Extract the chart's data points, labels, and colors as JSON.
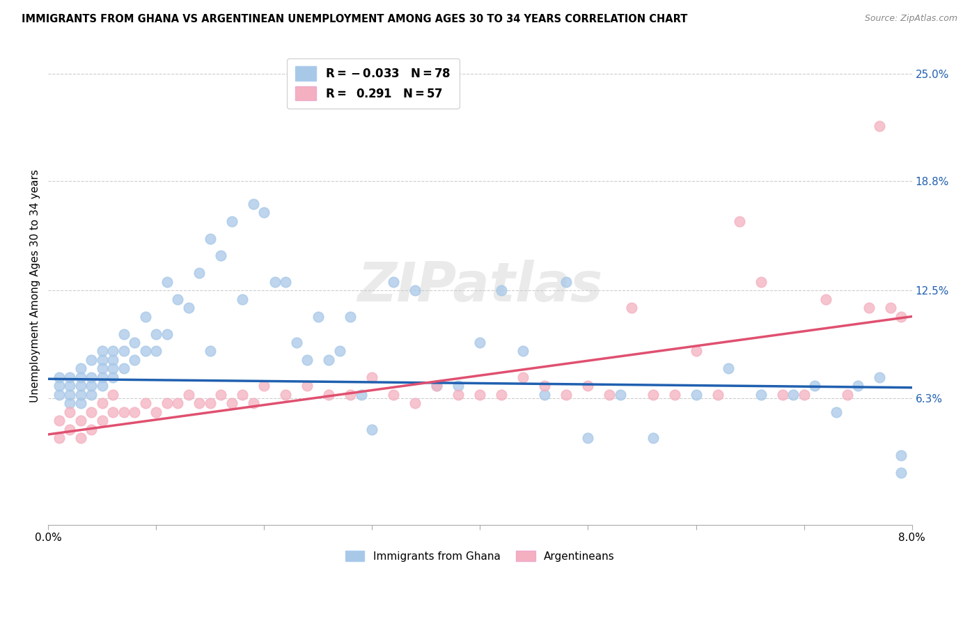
{
  "title": "IMMIGRANTS FROM GHANA VS ARGENTINEAN UNEMPLOYMENT AMONG AGES 30 TO 34 YEARS CORRELATION CHART",
  "source": "Source: ZipAtlas.com",
  "ylabel": "Unemployment Among Ages 30 to 34 years",
  "xlim": [
    0.0,
    0.08
  ],
  "ylim": [
    -0.01,
    0.265
  ],
  "xticks": [
    0.0,
    0.01,
    0.02,
    0.03,
    0.04,
    0.05,
    0.06,
    0.07,
    0.08
  ],
  "yticks_right": [
    0.063,
    0.125,
    0.188,
    0.25
  ],
  "ytick_labels_right": [
    "6.3%",
    "12.5%",
    "18.8%",
    "25.0%"
  ],
  "xtick_labels": [
    "0.0%",
    "",
    "",
    "",
    "",
    "",
    "",
    "",
    "8.0%"
  ],
  "blue_R": -0.033,
  "blue_N": 78,
  "pink_R": 0.291,
  "pink_N": 57,
  "blue_color": "#a8c8e8",
  "pink_color": "#f4b0c0",
  "blue_line_color": "#2060b0",
  "pink_line_color": "#e05070",
  "legend_label_blue": "Immigrants from Ghana",
  "legend_label_pink": "Argentineans",
  "watermark": "ZIPatlas",
  "blue_x": [
    0.001,
    0.001,
    0.001,
    0.002,
    0.002,
    0.002,
    0.002,
    0.003,
    0.003,
    0.003,
    0.003,
    0.003,
    0.004,
    0.004,
    0.004,
    0.004,
    0.005,
    0.005,
    0.005,
    0.005,
    0.005,
    0.006,
    0.006,
    0.006,
    0.006,
    0.007,
    0.007,
    0.007,
    0.008,
    0.008,
    0.009,
    0.009,
    0.01,
    0.01,
    0.011,
    0.011,
    0.012,
    0.013,
    0.014,
    0.015,
    0.015,
    0.016,
    0.017,
    0.018,
    0.019,
    0.02,
    0.021,
    0.022,
    0.023,
    0.024,
    0.025,
    0.026,
    0.027,
    0.028,
    0.029,
    0.03,
    0.032,
    0.034,
    0.036,
    0.038,
    0.04,
    0.042,
    0.044,
    0.046,
    0.048,
    0.05,
    0.053,
    0.056,
    0.06,
    0.063,
    0.066,
    0.069,
    0.071,
    0.073,
    0.075,
    0.077,
    0.079,
    0.079
  ],
  "blue_y": [
    0.065,
    0.07,
    0.075,
    0.06,
    0.065,
    0.07,
    0.075,
    0.06,
    0.065,
    0.07,
    0.075,
    0.08,
    0.065,
    0.07,
    0.075,
    0.085,
    0.07,
    0.075,
    0.08,
    0.085,
    0.09,
    0.075,
    0.08,
    0.085,
    0.09,
    0.08,
    0.09,
    0.1,
    0.085,
    0.095,
    0.09,
    0.11,
    0.09,
    0.1,
    0.1,
    0.13,
    0.12,
    0.115,
    0.135,
    0.155,
    0.09,
    0.145,
    0.165,
    0.12,
    0.175,
    0.17,
    0.13,
    0.13,
    0.095,
    0.085,
    0.11,
    0.085,
    0.09,
    0.11,
    0.065,
    0.045,
    0.13,
    0.125,
    0.07,
    0.07,
    0.095,
    0.125,
    0.09,
    0.065,
    0.13,
    0.04,
    0.065,
    0.04,
    0.065,
    0.08,
    0.065,
    0.065,
    0.07,
    0.055,
    0.07,
    0.075,
    0.03,
    0.02
  ],
  "pink_x": [
    0.001,
    0.001,
    0.002,
    0.002,
    0.003,
    0.003,
    0.004,
    0.004,
    0.005,
    0.005,
    0.006,
    0.006,
    0.007,
    0.008,
    0.009,
    0.01,
    0.011,
    0.012,
    0.013,
    0.014,
    0.015,
    0.016,
    0.017,
    0.018,
    0.019,
    0.02,
    0.022,
    0.024,
    0.026,
    0.028,
    0.03,
    0.032,
    0.034,
    0.036,
    0.038,
    0.04,
    0.042,
    0.044,
    0.046,
    0.048,
    0.05,
    0.052,
    0.054,
    0.056,
    0.058,
    0.06,
    0.062,
    0.064,
    0.066,
    0.068,
    0.07,
    0.072,
    0.074,
    0.076,
    0.077,
    0.078,
    0.079
  ],
  "pink_y": [
    0.04,
    0.05,
    0.045,
    0.055,
    0.04,
    0.05,
    0.045,
    0.055,
    0.05,
    0.06,
    0.055,
    0.065,
    0.055,
    0.055,
    0.06,
    0.055,
    0.06,
    0.06,
    0.065,
    0.06,
    0.06,
    0.065,
    0.06,
    0.065,
    0.06,
    0.07,
    0.065,
    0.07,
    0.065,
    0.065,
    0.075,
    0.065,
    0.06,
    0.07,
    0.065,
    0.065,
    0.065,
    0.075,
    0.07,
    0.065,
    0.07,
    0.065,
    0.115,
    0.065,
    0.065,
    0.09,
    0.065,
    0.165,
    0.13,
    0.065,
    0.065,
    0.12,
    0.065,
    0.115,
    0.22,
    0.115,
    0.11
  ],
  "blue_line_x0": 0.0,
  "blue_line_y0": 0.074,
  "blue_line_x1": 0.08,
  "blue_line_y1": 0.069,
  "pink_line_x0": 0.0,
  "pink_line_y0": 0.042,
  "pink_line_x1": 0.08,
  "pink_line_y1": 0.11
}
